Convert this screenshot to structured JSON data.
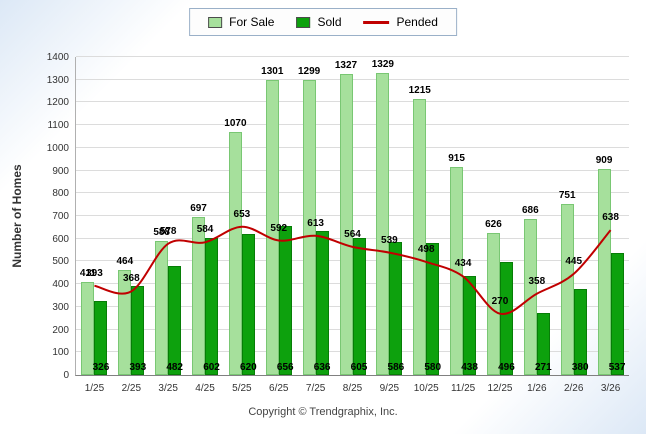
{
  "footer": {
    "text": "Copyright © Trendgraphix, Inc."
  },
  "chart_data": {
    "type": "bar",
    "title": "",
    "ylabel": "Number of Homes",
    "xlabel": "",
    "ylim": [
      0,
      1400
    ],
    "ytick_step": 100,
    "grid": true,
    "legend_position": "top",
    "categories": [
      "1/25",
      "2/25",
      "3/25",
      "4/25",
      "5/25",
      "6/25",
      "7/25",
      "8/25",
      "9/25",
      "10/25",
      "11/25",
      "12/25",
      "1/26",
      "2/26",
      "3/26"
    ],
    "series": [
      {
        "name": "For Sale",
        "type": "bar",
        "color": "#A6E09C",
        "values": [
          411,
          464,
          588,
          697,
          1070,
          1301,
          1299,
          1327,
          1329,
          1215,
          915,
          626,
          686,
          751,
          909
        ]
      },
      {
        "name": "Sold",
        "type": "bar",
        "color": "#0DA10D",
        "values": [
          326,
          393,
          482,
          602,
          620,
          656,
          636,
          605,
          586,
          580,
          438,
          496,
          271,
          380,
          537
        ]
      },
      {
        "name": "Pended",
        "type": "line",
        "color": "#C00000",
        "values": [
          393,
          368,
          578,
          584,
          653,
          592,
          613,
          564,
          539,
          498,
          434,
          270,
          358,
          445,
          638
        ]
      }
    ]
  }
}
